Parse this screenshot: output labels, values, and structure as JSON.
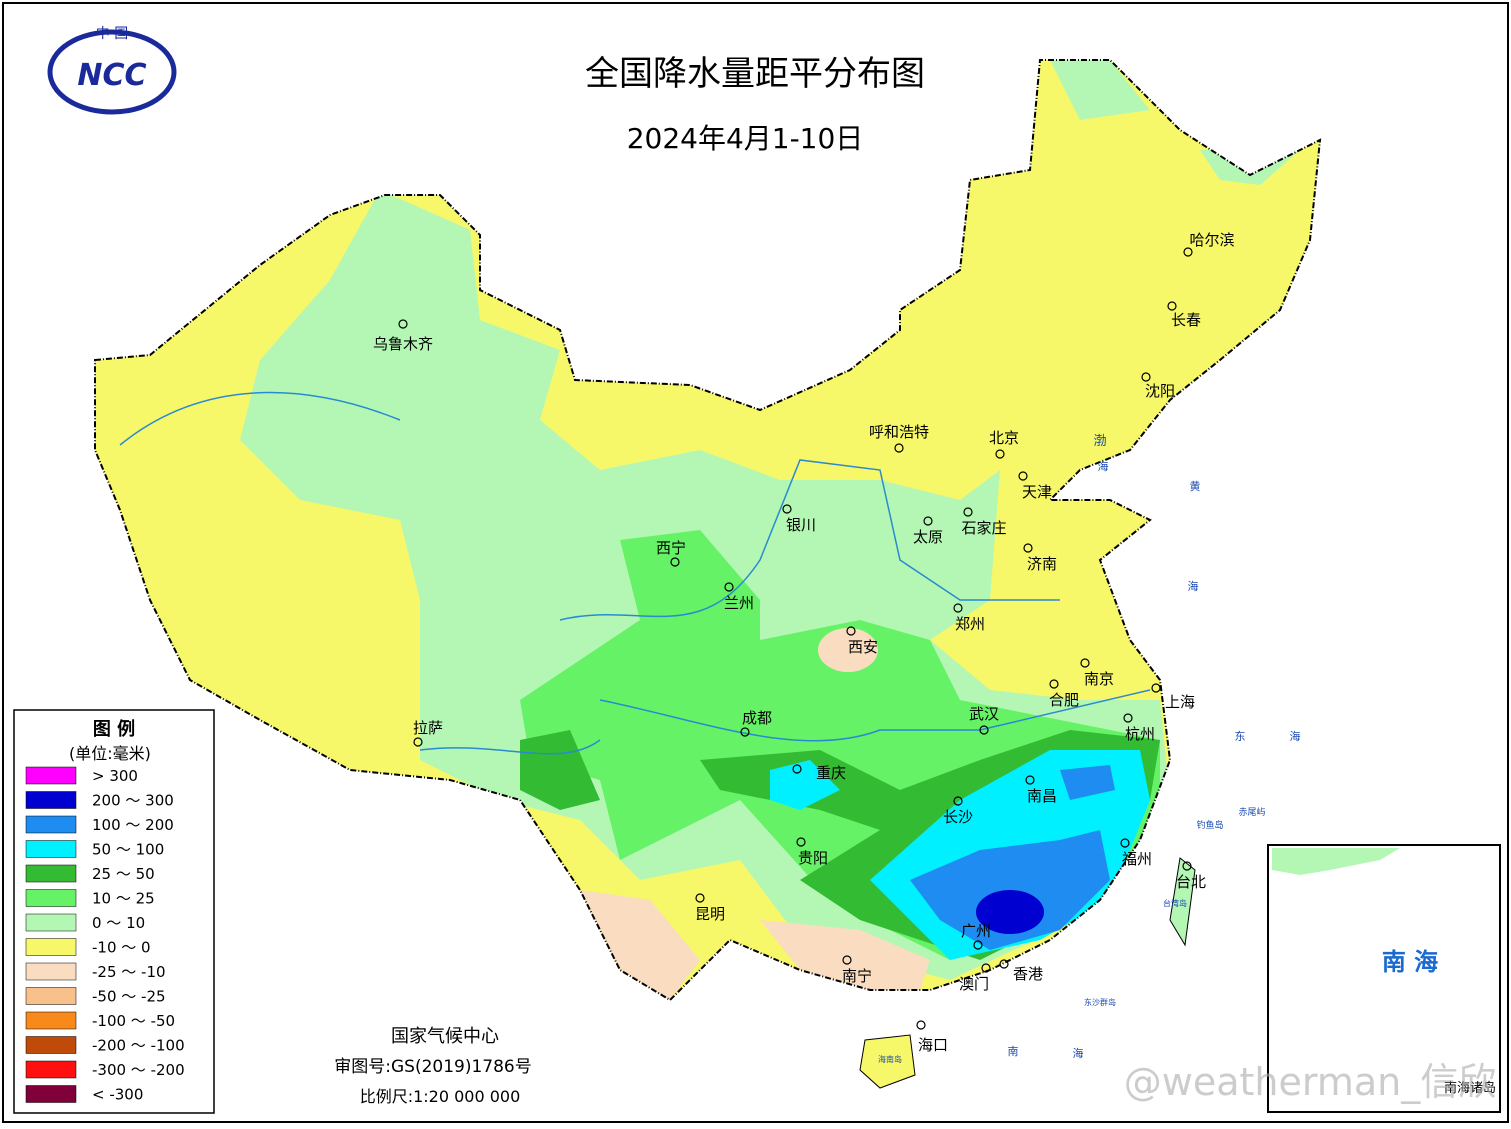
{
  "header": {
    "logo_top": "中 国",
    "logo": "NCC",
    "title": "全国降水量距平分布图",
    "subtitle": "2024年4月1-10日"
  },
  "legend": {
    "title": "图 例",
    "unit": "(单位:毫米)",
    "items": [
      {
        "label": ">  300",
        "color": "#ff00ff"
      },
      {
        "label": "200 ～ 300",
        "color": "#0000d0"
      },
      {
        "label": "100 ～ 200",
        "color": "#1e8cf0"
      },
      {
        "label": "50 ～ 100",
        "color": "#00f0ff"
      },
      {
        "label": "25 ～ 50",
        "color": "#33bb33"
      },
      {
        "label": "10 ～ 25",
        "color": "#66f266"
      },
      {
        "label": "0 ～ 10",
        "color": "#b4f7b4"
      },
      {
        "label": "-10 ～ 0",
        "color": "#f7f76a"
      },
      {
        "label": "-25 ～ -10",
        "color": "#fadcc0"
      },
      {
        "label": "-50 ～ -25",
        "color": "#f8c08a"
      },
      {
        "label": "-100 ～ -50",
        "color": "#f88a1c"
      },
      {
        "label": "-200 ～ -100",
        "color": "#c04a0a"
      },
      {
        "label": "-300 ～ -200",
        "color": "#ff1010"
      },
      {
        "label": "< -300",
        "color": "#80003a"
      }
    ]
  },
  "cities": [
    "乌鲁木齐",
    "哈尔滨",
    "长春",
    "沈阳",
    "呼和浩特",
    "北京",
    "天津",
    "石家庄",
    "太原",
    "银川",
    "西宁",
    "兰州",
    "济南",
    "郑州",
    "西安",
    "南京",
    "合肥",
    "上海",
    "拉萨",
    "成都",
    "武汉",
    "杭州",
    "重庆",
    "南昌",
    "长沙",
    "福州",
    "贵阳",
    "台北",
    "昆明",
    "广州",
    "南宁",
    "澳门",
    "香港",
    "海口"
  ],
  "seas": [
    "渤",
    "海",
    "黄",
    "海",
    "东",
    "海",
    "南",
    "海",
    "钓鱼岛",
    "赤尾屿",
    "台湾岛",
    "东沙群岛",
    "海南岛"
  ],
  "footer": {
    "org": "国家气候中心",
    "approval": "审图号:GS(2019)1786号",
    "scale": "比例尺:1:20 000 000"
  },
  "inset": {
    "label": "南 海",
    "caption": "南海诸岛"
  },
  "watermark": "@weatherman_信欣"
}
